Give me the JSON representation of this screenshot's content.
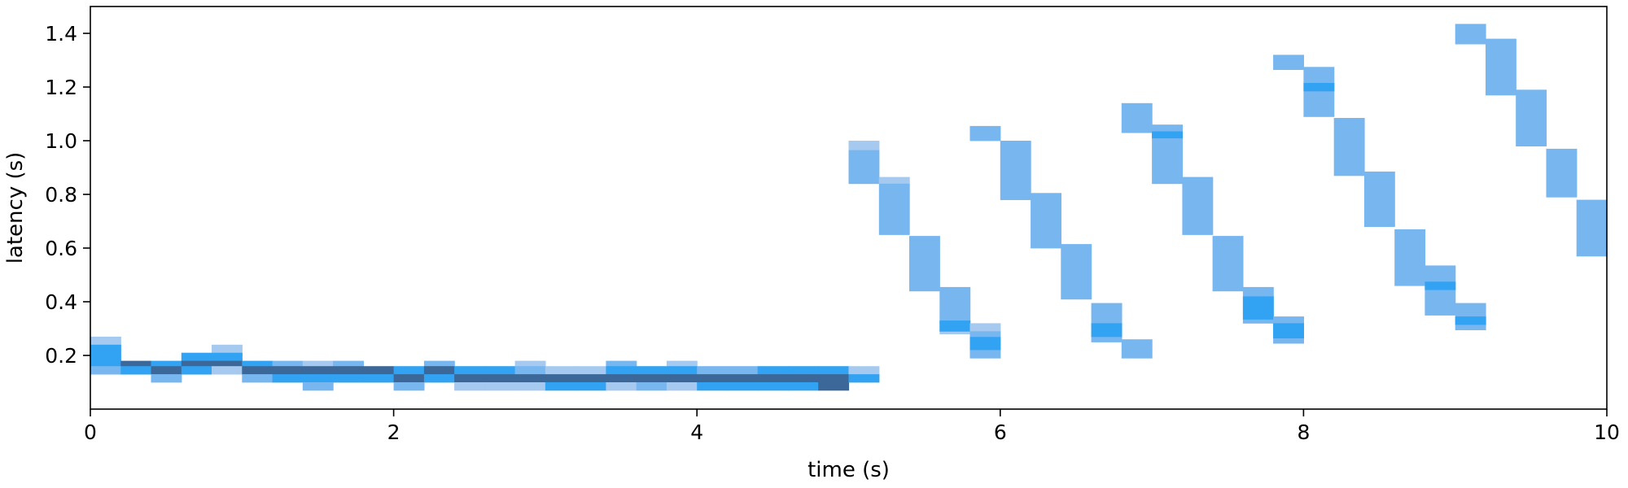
{
  "chart_data": {
    "type": "heatmap",
    "title": "",
    "xlabel": "time (s)",
    "ylabel": "latency (s)",
    "xlim": [
      0,
      10
    ],
    "ylim": [
      0.0,
      1.5
    ],
    "xticks": [
      0,
      2,
      4,
      6,
      8,
      10
    ],
    "xtick_labels": [
      "0",
      "2",
      "4",
      "6",
      "8",
      "10"
    ],
    "yticks": [
      0.2,
      0.4,
      0.6,
      0.8,
      1.0,
      1.2,
      1.4
    ],
    "ytick_labels": [
      "0.2",
      "0.4",
      "0.6",
      "0.8",
      "1.0",
      "1.2",
      "1.4"
    ],
    "grid": false,
    "legend": "none",
    "time_bin_width": 0.2,
    "latency_bin_height": 0.026,
    "colors": {
      "light": "#a6c9f0",
      "mid": "#78b6f0",
      "bright": "#32a2f2",
      "dark": "#3b6898"
    },
    "bins": [
      {
        "x": 0.0,
        "y0": 0.24,
        "y1": 0.27,
        "c": "light"
      },
      {
        "x": 0.0,
        "y0": 0.16,
        "y1": 0.24,
        "c": "bright"
      },
      {
        "x": 0.0,
        "y0": 0.13,
        "y1": 0.16,
        "c": "mid"
      },
      {
        "x": 0.2,
        "y0": 0.16,
        "y1": 0.18,
        "c": "dark"
      },
      {
        "x": 0.2,
        "y0": 0.13,
        "y1": 0.16,
        "c": "bright"
      },
      {
        "x": 0.4,
        "y0": 0.16,
        "y1": 0.18,
        "c": "bright"
      },
      {
        "x": 0.4,
        "y0": 0.13,
        "y1": 0.16,
        "c": "dark"
      },
      {
        "x": 0.4,
        "y0": 0.1,
        "y1": 0.13,
        "c": "mid"
      },
      {
        "x": 0.6,
        "y0": 0.18,
        "y1": 0.21,
        "c": "bright"
      },
      {
        "x": 0.6,
        "y0": 0.16,
        "y1": 0.18,
        "c": "dark"
      },
      {
        "x": 0.6,
        "y0": 0.13,
        "y1": 0.16,
        "c": "bright"
      },
      {
        "x": 0.8,
        "y0": 0.21,
        "y1": 0.24,
        "c": "light"
      },
      {
        "x": 0.8,
        "y0": 0.18,
        "y1": 0.21,
        "c": "bright"
      },
      {
        "x": 0.8,
        "y0": 0.16,
        "y1": 0.18,
        "c": "dark"
      },
      {
        "x": 0.8,
        "y0": 0.13,
        "y1": 0.16,
        "c": "light"
      },
      {
        "x": 1.0,
        "y0": 0.16,
        "y1": 0.18,
        "c": "bright"
      },
      {
        "x": 1.0,
        "y0": 0.13,
        "y1": 0.16,
        "c": "dark"
      },
      {
        "x": 1.0,
        "y0": 0.1,
        "y1": 0.13,
        "c": "mid"
      },
      {
        "x": 1.2,
        "y0": 0.16,
        "y1": 0.18,
        "c": "mid"
      },
      {
        "x": 1.2,
        "y0": 0.13,
        "y1": 0.16,
        "c": "dark"
      },
      {
        "x": 1.2,
        "y0": 0.1,
        "y1": 0.13,
        "c": "bright"
      },
      {
        "x": 1.4,
        "y0": 0.16,
        "y1": 0.18,
        "c": "light"
      },
      {
        "x": 1.4,
        "y0": 0.13,
        "y1": 0.16,
        "c": "dark"
      },
      {
        "x": 1.4,
        "y0": 0.1,
        "y1": 0.13,
        "c": "bright"
      },
      {
        "x": 1.4,
        "y0": 0.07,
        "y1": 0.1,
        "c": "mid"
      },
      {
        "x": 1.6,
        "y0": 0.16,
        "y1": 0.18,
        "c": "mid"
      },
      {
        "x": 1.6,
        "y0": 0.13,
        "y1": 0.16,
        "c": "dark"
      },
      {
        "x": 1.6,
        "y0": 0.1,
        "y1": 0.13,
        "c": "bright"
      },
      {
        "x": 1.8,
        "y0": 0.13,
        "y1": 0.16,
        "c": "dark"
      },
      {
        "x": 1.8,
        "y0": 0.1,
        "y1": 0.13,
        "c": "bright"
      },
      {
        "x": 2.0,
        "y0": 0.13,
        "y1": 0.16,
        "c": "bright"
      },
      {
        "x": 2.0,
        "y0": 0.1,
        "y1": 0.13,
        "c": "dark"
      },
      {
        "x": 2.0,
        "y0": 0.07,
        "y1": 0.1,
        "c": "mid"
      },
      {
        "x": 2.2,
        "y0": 0.16,
        "y1": 0.18,
        "c": "mid"
      },
      {
        "x": 2.2,
        "y0": 0.13,
        "y1": 0.16,
        "c": "dark"
      },
      {
        "x": 2.2,
        "y0": 0.1,
        "y1": 0.13,
        "c": "bright"
      },
      {
        "x": 2.4,
        "y0": 0.13,
        "y1": 0.16,
        "c": "bright"
      },
      {
        "x": 2.4,
        "y0": 0.1,
        "y1": 0.13,
        "c": "dark"
      },
      {
        "x": 2.4,
        "y0": 0.07,
        "y1": 0.1,
        "c": "light"
      },
      {
        "x": 2.6,
        "y0": 0.13,
        "y1": 0.16,
        "c": "bright"
      },
      {
        "x": 2.6,
        "y0": 0.1,
        "y1": 0.13,
        "c": "dark"
      },
      {
        "x": 2.6,
        "y0": 0.07,
        "y1": 0.1,
        "c": "light"
      },
      {
        "x": 2.8,
        "y0": 0.16,
        "y1": 0.18,
        "c": "light"
      },
      {
        "x": 2.8,
        "y0": 0.13,
        "y1": 0.16,
        "c": "mid"
      },
      {
        "x": 2.8,
        "y0": 0.1,
        "y1": 0.13,
        "c": "dark"
      },
      {
        "x": 2.8,
        "y0": 0.07,
        "y1": 0.1,
        "c": "light"
      },
      {
        "x": 3.0,
        "y0": 0.13,
        "y1": 0.16,
        "c": "light"
      },
      {
        "x": 3.0,
        "y0": 0.1,
        "y1": 0.13,
        "c": "dark"
      },
      {
        "x": 3.0,
        "y0": 0.07,
        "y1": 0.1,
        "c": "bright"
      },
      {
        "x": 3.2,
        "y0": 0.13,
        "y1": 0.16,
        "c": "light"
      },
      {
        "x": 3.2,
        "y0": 0.1,
        "y1": 0.13,
        "c": "dark"
      },
      {
        "x": 3.2,
        "y0": 0.07,
        "y1": 0.1,
        "c": "bright"
      },
      {
        "x": 3.4,
        "y0": 0.16,
        "y1": 0.18,
        "c": "mid"
      },
      {
        "x": 3.4,
        "y0": 0.13,
        "y1": 0.16,
        "c": "bright"
      },
      {
        "x": 3.4,
        "y0": 0.1,
        "y1": 0.13,
        "c": "dark"
      },
      {
        "x": 3.4,
        "y0": 0.07,
        "y1": 0.1,
        "c": "light"
      },
      {
        "x": 3.6,
        "y0": 0.13,
        "y1": 0.16,
        "c": "bright"
      },
      {
        "x": 3.6,
        "y0": 0.1,
        "y1": 0.13,
        "c": "dark"
      },
      {
        "x": 3.6,
        "y0": 0.07,
        "y1": 0.1,
        "c": "mid"
      },
      {
        "x": 3.8,
        "y0": 0.16,
        "y1": 0.18,
        "c": "light"
      },
      {
        "x": 3.8,
        "y0": 0.13,
        "y1": 0.16,
        "c": "bright"
      },
      {
        "x": 3.8,
        "y0": 0.1,
        "y1": 0.13,
        "c": "dark"
      },
      {
        "x": 3.8,
        "y0": 0.07,
        "y1": 0.1,
        "c": "light"
      },
      {
        "x": 4.0,
        "y0": 0.13,
        "y1": 0.16,
        "c": "mid"
      },
      {
        "x": 4.0,
        "y0": 0.1,
        "y1": 0.13,
        "c": "dark"
      },
      {
        "x": 4.0,
        "y0": 0.07,
        "y1": 0.1,
        "c": "bright"
      },
      {
        "x": 4.2,
        "y0": 0.13,
        "y1": 0.16,
        "c": "mid"
      },
      {
        "x": 4.2,
        "y0": 0.1,
        "y1": 0.13,
        "c": "dark"
      },
      {
        "x": 4.2,
        "y0": 0.07,
        "y1": 0.1,
        "c": "bright"
      },
      {
        "x": 4.4,
        "y0": 0.13,
        "y1": 0.16,
        "c": "bright"
      },
      {
        "x": 4.4,
        "y0": 0.1,
        "y1": 0.13,
        "c": "dark"
      },
      {
        "x": 4.4,
        "y0": 0.07,
        "y1": 0.1,
        "c": "bright"
      },
      {
        "x": 4.6,
        "y0": 0.13,
        "y1": 0.16,
        "c": "bright"
      },
      {
        "x": 4.6,
        "y0": 0.1,
        "y1": 0.13,
        "c": "dark"
      },
      {
        "x": 4.6,
        "y0": 0.07,
        "y1": 0.1,
        "c": "bright"
      },
      {
        "x": 4.8,
        "y0": 0.13,
        "y1": 0.16,
        "c": "bright"
      },
      {
        "x": 4.8,
        "y0": 0.1,
        "y1": 0.13,
        "c": "dark"
      },
      {
        "x": 4.8,
        "y0": 0.07,
        "y1": 0.1,
        "c": "dark"
      },
      {
        "x": 5.0,
        "y0": 0.13,
        "y1": 0.16,
        "c": "light"
      },
      {
        "x": 5.0,
        "y0": 0.1,
        "y1": 0.13,
        "c": "bright"
      },
      {
        "x": 5.0,
        "y0": 0.965,
        "y1": 1.0,
        "c": "light"
      },
      {
        "x": 5.0,
        "y0": 0.84,
        "y1": 0.965,
        "c": "mid"
      },
      {
        "x": 5.2,
        "y0": 0.84,
        "y1": 0.865,
        "c": "light"
      },
      {
        "x": 5.2,
        "y0": 0.65,
        "y1": 0.84,
        "c": "mid"
      },
      {
        "x": 5.4,
        "y0": 0.44,
        "y1": 0.645,
        "c": "mid"
      },
      {
        "x": 5.6,
        "y0": 0.32,
        "y1": 0.455,
        "c": "mid"
      },
      {
        "x": 5.6,
        "y0": 0.28,
        "y1": 0.32,
        "c": "light"
      },
      {
        "x": 5.6,
        "y0": 0.29,
        "y1": 0.33,
        "c": "bright"
      },
      {
        "x": 5.8,
        "y0": 0.29,
        "y1": 0.32,
        "c": "light"
      },
      {
        "x": 5.8,
        "y0": 0.22,
        "y1": 0.27,
        "c": "bright"
      },
      {
        "x": 5.8,
        "y0": 0.19,
        "y1": 0.22,
        "c": "mid"
      },
      {
        "x": 5.8,
        "y0": 0.27,
        "y1": 0.29,
        "c": "mid"
      },
      {
        "x": 6.0,
        "y0": 0.78,
        "y1": 1.0,
        "c": "mid"
      },
      {
        "x": 5.8,
        "y0": 1.0,
        "y1": 1.055,
        "c": "mid"
      },
      {
        "x": 6.2,
        "y0": 0.6,
        "y1": 0.805,
        "c": "mid"
      },
      {
        "x": 6.4,
        "y0": 0.41,
        "y1": 0.615,
        "c": "mid"
      },
      {
        "x": 6.6,
        "y0": 0.25,
        "y1": 0.395,
        "c": "mid"
      },
      {
        "x": 6.6,
        "y0": 0.27,
        "y1": 0.32,
        "c": "bright"
      },
      {
        "x": 6.8,
        "y0": 0.19,
        "y1": 0.26,
        "c": "mid"
      },
      {
        "x": 6.8,
        "y0": 1.03,
        "y1": 1.14,
        "c": "mid"
      },
      {
        "x": 7.0,
        "y0": 0.84,
        "y1": 1.06,
        "c": "mid"
      },
      {
        "x": 7.0,
        "y0": 1.01,
        "y1": 1.035,
        "c": "bright"
      },
      {
        "x": 7.2,
        "y0": 0.65,
        "y1": 0.865,
        "c": "mid"
      },
      {
        "x": 7.4,
        "y0": 0.44,
        "y1": 0.645,
        "c": "mid"
      },
      {
        "x": 7.6,
        "y0": 0.32,
        "y1": 0.455,
        "c": "mid"
      },
      {
        "x": 7.6,
        "y0": 0.335,
        "y1": 0.42,
        "c": "bright"
      },
      {
        "x": 7.8,
        "y0": 0.245,
        "y1": 0.345,
        "c": "mid"
      },
      {
        "x": 7.8,
        "y0": 0.265,
        "y1": 0.32,
        "c": "bright"
      },
      {
        "x": 7.8,
        "y0": 1.265,
        "y1": 1.32,
        "c": "mid"
      },
      {
        "x": 8.0,
        "y0": 1.09,
        "y1": 1.275,
        "c": "mid"
      },
      {
        "x": 8.0,
        "y0": 1.185,
        "y1": 1.215,
        "c": "bright"
      },
      {
        "x": 8.2,
        "y0": 0.87,
        "y1": 1.085,
        "c": "mid"
      },
      {
        "x": 8.4,
        "y0": 0.68,
        "y1": 0.885,
        "c": "mid"
      },
      {
        "x": 8.6,
        "y0": 0.46,
        "y1": 0.67,
        "c": "mid"
      },
      {
        "x": 8.8,
        "y0": 0.35,
        "y1": 0.535,
        "c": "mid"
      },
      {
        "x": 8.8,
        "y0": 0.445,
        "y1": 0.475,
        "c": "bright"
      },
      {
        "x": 9.0,
        "y0": 0.295,
        "y1": 0.395,
        "c": "mid"
      },
      {
        "x": 9.0,
        "y0": 0.315,
        "y1": 0.345,
        "c": "bright"
      },
      {
        "x": 9.0,
        "y0": 1.36,
        "y1": 1.435,
        "c": "mid"
      },
      {
        "x": 9.2,
        "y0": 1.17,
        "y1": 1.38,
        "c": "mid"
      },
      {
        "x": 9.4,
        "y0": 0.98,
        "y1": 1.19,
        "c": "mid"
      },
      {
        "x": 9.6,
        "y0": 0.79,
        "y1": 0.97,
        "c": "mid"
      },
      {
        "x": 9.8,
        "y0": 0.57,
        "y1": 0.78,
        "c": "mid"
      }
    ]
  }
}
